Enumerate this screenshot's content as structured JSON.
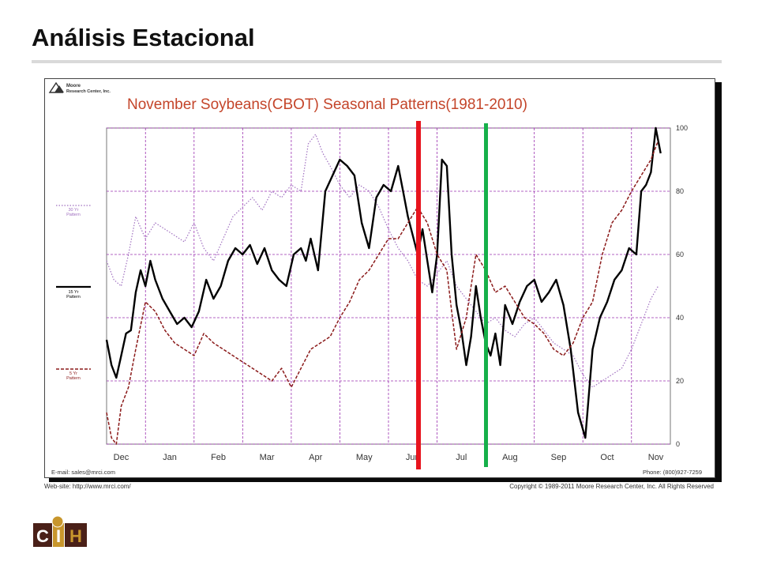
{
  "slide": {
    "title": "Análisis Estacional"
  },
  "chart": {
    "publisher": "Moore Research Center, Inc.",
    "publisher_line1": "Moore",
    "publisher_line2": "Research Center, Inc.",
    "email": "E-mail: sales@mrci.com",
    "phone": "Phone: (800)927-7259",
    "website": "Web-site: http://www.mrci.com/",
    "copyright": "Copyright © 1989-2011 Moore Research Center, Inc. All Rights Reserved",
    "legend": [
      {
        "line1": "30 Yr",
        "line2": "Pattern",
        "color": "#a070c0",
        "style": "dotted"
      },
      {
        "line1": "15 Yr",
        "line2": "Pattern",
        "color": "#000000",
        "style": "solid"
      },
      {
        "line1": "5 Yr",
        "line2": "Pattern",
        "color": "#8b1a1a",
        "style": "dashed"
      }
    ]
  },
  "logo": {
    "text": "CIH",
    "letters": [
      "C",
      "I",
      "H"
    ],
    "colors": {
      "dark": "#4a2018",
      "gold": "#c8962c"
    }
  },
  "colors": {
    "grid": "#9b30b0",
    "title": "#c4452a",
    "pattern_30yr": "#a070c0",
    "pattern_15yr": "#000000",
    "pattern_5yr": "#8b1a1a",
    "marker_red": "#e8141e",
    "marker_green": "#16b04a"
  },
  "chart_data": {
    "type": "line",
    "title": "November Soybeans(CBOT) Seasonal Patterns(1981-2010)",
    "x_labels": [
      "Dec",
      "Jan",
      "Feb",
      "Mar",
      "Apr",
      "May",
      "Jun",
      "Jul",
      "Aug",
      "Sep",
      "Oct",
      "Nov"
    ],
    "ylim": [
      0,
      100
    ],
    "yticks": [
      0,
      20,
      40,
      60,
      80,
      100
    ],
    "y_axis_side": "right",
    "grid": true,
    "x_unit": "months from December (0 = start of Dec)",
    "series": [
      {
        "name": "30 Yr Pattern",
        "style": "dotted",
        "color": "#a070c0",
        "x": [
          0,
          0.15,
          0.3,
          0.45,
          0.6,
          0.8,
          1.0,
          1.2,
          1.4,
          1.6,
          1.8,
          2.0,
          2.2,
          2.4,
          2.6,
          2.8,
          3.0,
          3.2,
          3.4,
          3.6,
          3.8,
          4.0,
          4.15,
          4.3,
          4.45,
          4.6,
          4.8,
          5.0,
          5.2,
          5.4,
          5.6,
          5.8,
          6.0,
          6.2,
          6.4,
          6.6,
          6.8,
          7.0,
          7.2,
          7.4,
          7.6,
          7.8,
          8.0,
          8.2,
          8.4,
          8.6,
          8.8,
          9.0,
          9.2,
          9.4,
          9.6,
          9.8,
          10.0,
          10.2,
          10.4,
          10.6,
          10.8,
          11.0,
          11.2,
          11.35
        ],
        "y": [
          58,
          52,
          50,
          60,
          72,
          65,
          70,
          68,
          66,
          64,
          70,
          62,
          58,
          65,
          72,
          75,
          78,
          74,
          80,
          78,
          82,
          80,
          95,
          98,
          92,
          88,
          82,
          78,
          82,
          80,
          75,
          68,
          62,
          58,
          52,
          50,
          54,
          58,
          50,
          46,
          42,
          38,
          40,
          36,
          34,
          38,
          40,
          36,
          32,
          30,
          28,
          22,
          18,
          20,
          22,
          24,
          30,
          38,
          46,
          50
        ]
      },
      {
        "name": "15 Yr Pattern",
        "style": "solid",
        "color": "#000000",
        "x": [
          0,
          0.1,
          0.2,
          0.3,
          0.4,
          0.5,
          0.6,
          0.7,
          0.8,
          0.9,
          1.0,
          1.15,
          1.3,
          1.45,
          1.6,
          1.75,
          1.9,
          2.05,
          2.2,
          2.35,
          2.5,
          2.65,
          2.8,
          2.95,
          3.1,
          3.25,
          3.4,
          3.55,
          3.7,
          3.85,
          4.0,
          4.1,
          4.2,
          4.35,
          4.5,
          4.65,
          4.8,
          4.95,
          5.1,
          5.25,
          5.4,
          5.55,
          5.7,
          5.85,
          6.0,
          6.1,
          6.2,
          6.3,
          6.4,
          6.5,
          6.6,
          6.7,
          6.8,
          6.9,
          7.0,
          7.1,
          7.2,
          7.3,
          7.4,
          7.5,
          7.6,
          7.7,
          7.8,
          7.9,
          8.0,
          8.1,
          8.2,
          8.35,
          8.5,
          8.65,
          8.8,
          8.95,
          9.1,
          9.25,
          9.4,
          9.55,
          9.7,
          9.85,
          10.0,
          10.15,
          10.3,
          10.45,
          10.6,
          10.75,
          10.9,
          11.0,
          11.1,
          11.2,
          11.3,
          11.4
        ],
        "y": [
          33,
          25,
          21,
          28,
          35,
          36,
          48,
          55,
          50,
          58,
          52,
          46,
          42,
          38,
          40,
          37,
          42,
          52,
          46,
          50,
          58,
          62,
          60,
          63,
          57,
          62,
          55,
          52,
          50,
          60,
          62,
          58,
          65,
          55,
          80,
          85,
          90,
          88,
          85,
          70,
          62,
          78,
          82,
          80,
          88,
          80,
          72,
          66,
          60,
          68,
          58,
          48,
          60,
          90,
          88,
          60,
          44,
          36,
          25,
          34,
          50,
          40,
          32,
          28,
          35,
          25,
          44,
          38,
          45,
          50,
          52,
          45,
          48,
          52,
          44,
          30,
          10,
          2,
          30,
          40,
          45,
          52,
          55,
          62,
          60,
          80,
          82,
          86,
          100,
          92
        ]
      },
      {
        "name": "5 Yr Pattern",
        "style": "dashed",
        "color": "#8b1a1a",
        "x": [
          0,
          0.1,
          0.2,
          0.3,
          0.45,
          0.6,
          0.8,
          1.0,
          1.2,
          1.4,
          1.6,
          1.8,
          2.0,
          2.2,
          2.4,
          2.6,
          2.8,
          3.0,
          3.2,
          3.4,
          3.6,
          3.8,
          4.0,
          4.2,
          4.4,
          4.6,
          4.8,
          5.0,
          5.2,
          5.4,
          5.6,
          5.8,
          6.0,
          6.2,
          6.4,
          6.6,
          6.8,
          7.0,
          7.1,
          7.2,
          7.4,
          7.6,
          7.8,
          8.0,
          8.2,
          8.4,
          8.6,
          8.8,
          9.0,
          9.2,
          9.4,
          9.6,
          9.8,
          10.0,
          10.2,
          10.4,
          10.6,
          10.8,
          11.0,
          11.2,
          11.35
        ],
        "y": [
          10,
          2,
          0,
          12,
          18,
          30,
          45,
          42,
          36,
          32,
          30,
          28,
          35,
          32,
          30,
          28,
          26,
          24,
          22,
          20,
          24,
          18,
          24,
          30,
          32,
          34,
          40,
          45,
          52,
          55,
          60,
          65,
          65,
          70,
          75,
          70,
          60,
          55,
          42,
          30,
          40,
          60,
          55,
          48,
          50,
          45,
          40,
          38,
          35,
          30,
          28,
          32,
          40,
          45,
          60,
          70,
          74,
          80,
          85,
          90,
          96
        ]
      }
    ],
    "markers": [
      {
        "color": "red",
        "position": "Jun"
      },
      {
        "color": "green",
        "position": "Jul"
      }
    ]
  }
}
